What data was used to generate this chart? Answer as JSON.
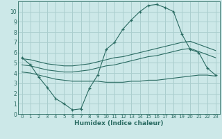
{
  "xlabel": "Humidex (Indice chaleur)",
  "background_color": "#cce8e8",
  "line_color": "#2a6b62",
  "grid_color": "#aacece",
  "xlim": [
    -0.5,
    23.5
  ],
  "ylim": [
    0,
    11
  ],
  "xticks": [
    0,
    1,
    2,
    3,
    4,
    5,
    6,
    7,
    8,
    9,
    10,
    11,
    12,
    13,
    14,
    15,
    16,
    17,
    18,
    19,
    20,
    21,
    22,
    23
  ],
  "yticks": [
    0,
    1,
    2,
    3,
    4,
    5,
    6,
    7,
    8,
    9,
    10
  ],
  "curve1_x": [
    0,
    1,
    2,
    3,
    4,
    5,
    6,
    7,
    8,
    9,
    10,
    11,
    12,
    13,
    14,
    15,
    16,
    17,
    18,
    19,
    20,
    21,
    22,
    23
  ],
  "curve1_y": [
    5.5,
    4.8,
    3.6,
    2.6,
    1.5,
    1.0,
    0.4,
    0.5,
    2.5,
    3.8,
    6.3,
    7.0,
    8.3,
    9.2,
    10.0,
    10.6,
    10.7,
    10.4,
    10.0,
    7.8,
    6.3,
    6.0,
    4.5,
    3.8
  ],
  "curve2_x": [
    0,
    1,
    2,
    3,
    4,
    5,
    6,
    7,
    8,
    9,
    10,
    11,
    12,
    13,
    14,
    15,
    16,
    17,
    18,
    19,
    20,
    21,
    22,
    23
  ],
  "curve2_y": [
    5.4,
    5.3,
    5.1,
    4.9,
    4.8,
    4.7,
    4.7,
    4.8,
    4.9,
    5.1,
    5.3,
    5.5,
    5.6,
    5.8,
    6.0,
    6.2,
    6.4,
    6.6,
    6.8,
    7.0,
    7.1,
    6.8,
    6.5,
    6.2
  ],
  "curve3_x": [
    0,
    1,
    2,
    3,
    4,
    5,
    6,
    7,
    8,
    9,
    10,
    11,
    12,
    13,
    14,
    15,
    16,
    17,
    18,
    19,
    20,
    21,
    22,
    23
  ],
  "curve3_y": [
    4.8,
    4.7,
    4.5,
    4.3,
    4.2,
    4.1,
    4.1,
    4.2,
    4.3,
    4.5,
    4.7,
    4.8,
    5.0,
    5.2,
    5.4,
    5.6,
    5.7,
    5.9,
    6.1,
    6.3,
    6.4,
    6.1,
    5.8,
    5.5
  ],
  "curve4_x": [
    0,
    1,
    2,
    3,
    4,
    5,
    6,
    7,
    8,
    9,
    10,
    11,
    12,
    13,
    14,
    15,
    16,
    17,
    18,
    19,
    20,
    21,
    22,
    23
  ],
  "curve4_y": [
    4.1,
    4.0,
    3.8,
    3.6,
    3.4,
    3.3,
    3.2,
    3.2,
    3.2,
    3.2,
    3.1,
    3.1,
    3.1,
    3.2,
    3.2,
    3.3,
    3.3,
    3.4,
    3.5,
    3.6,
    3.7,
    3.8,
    3.8,
    3.7
  ]
}
